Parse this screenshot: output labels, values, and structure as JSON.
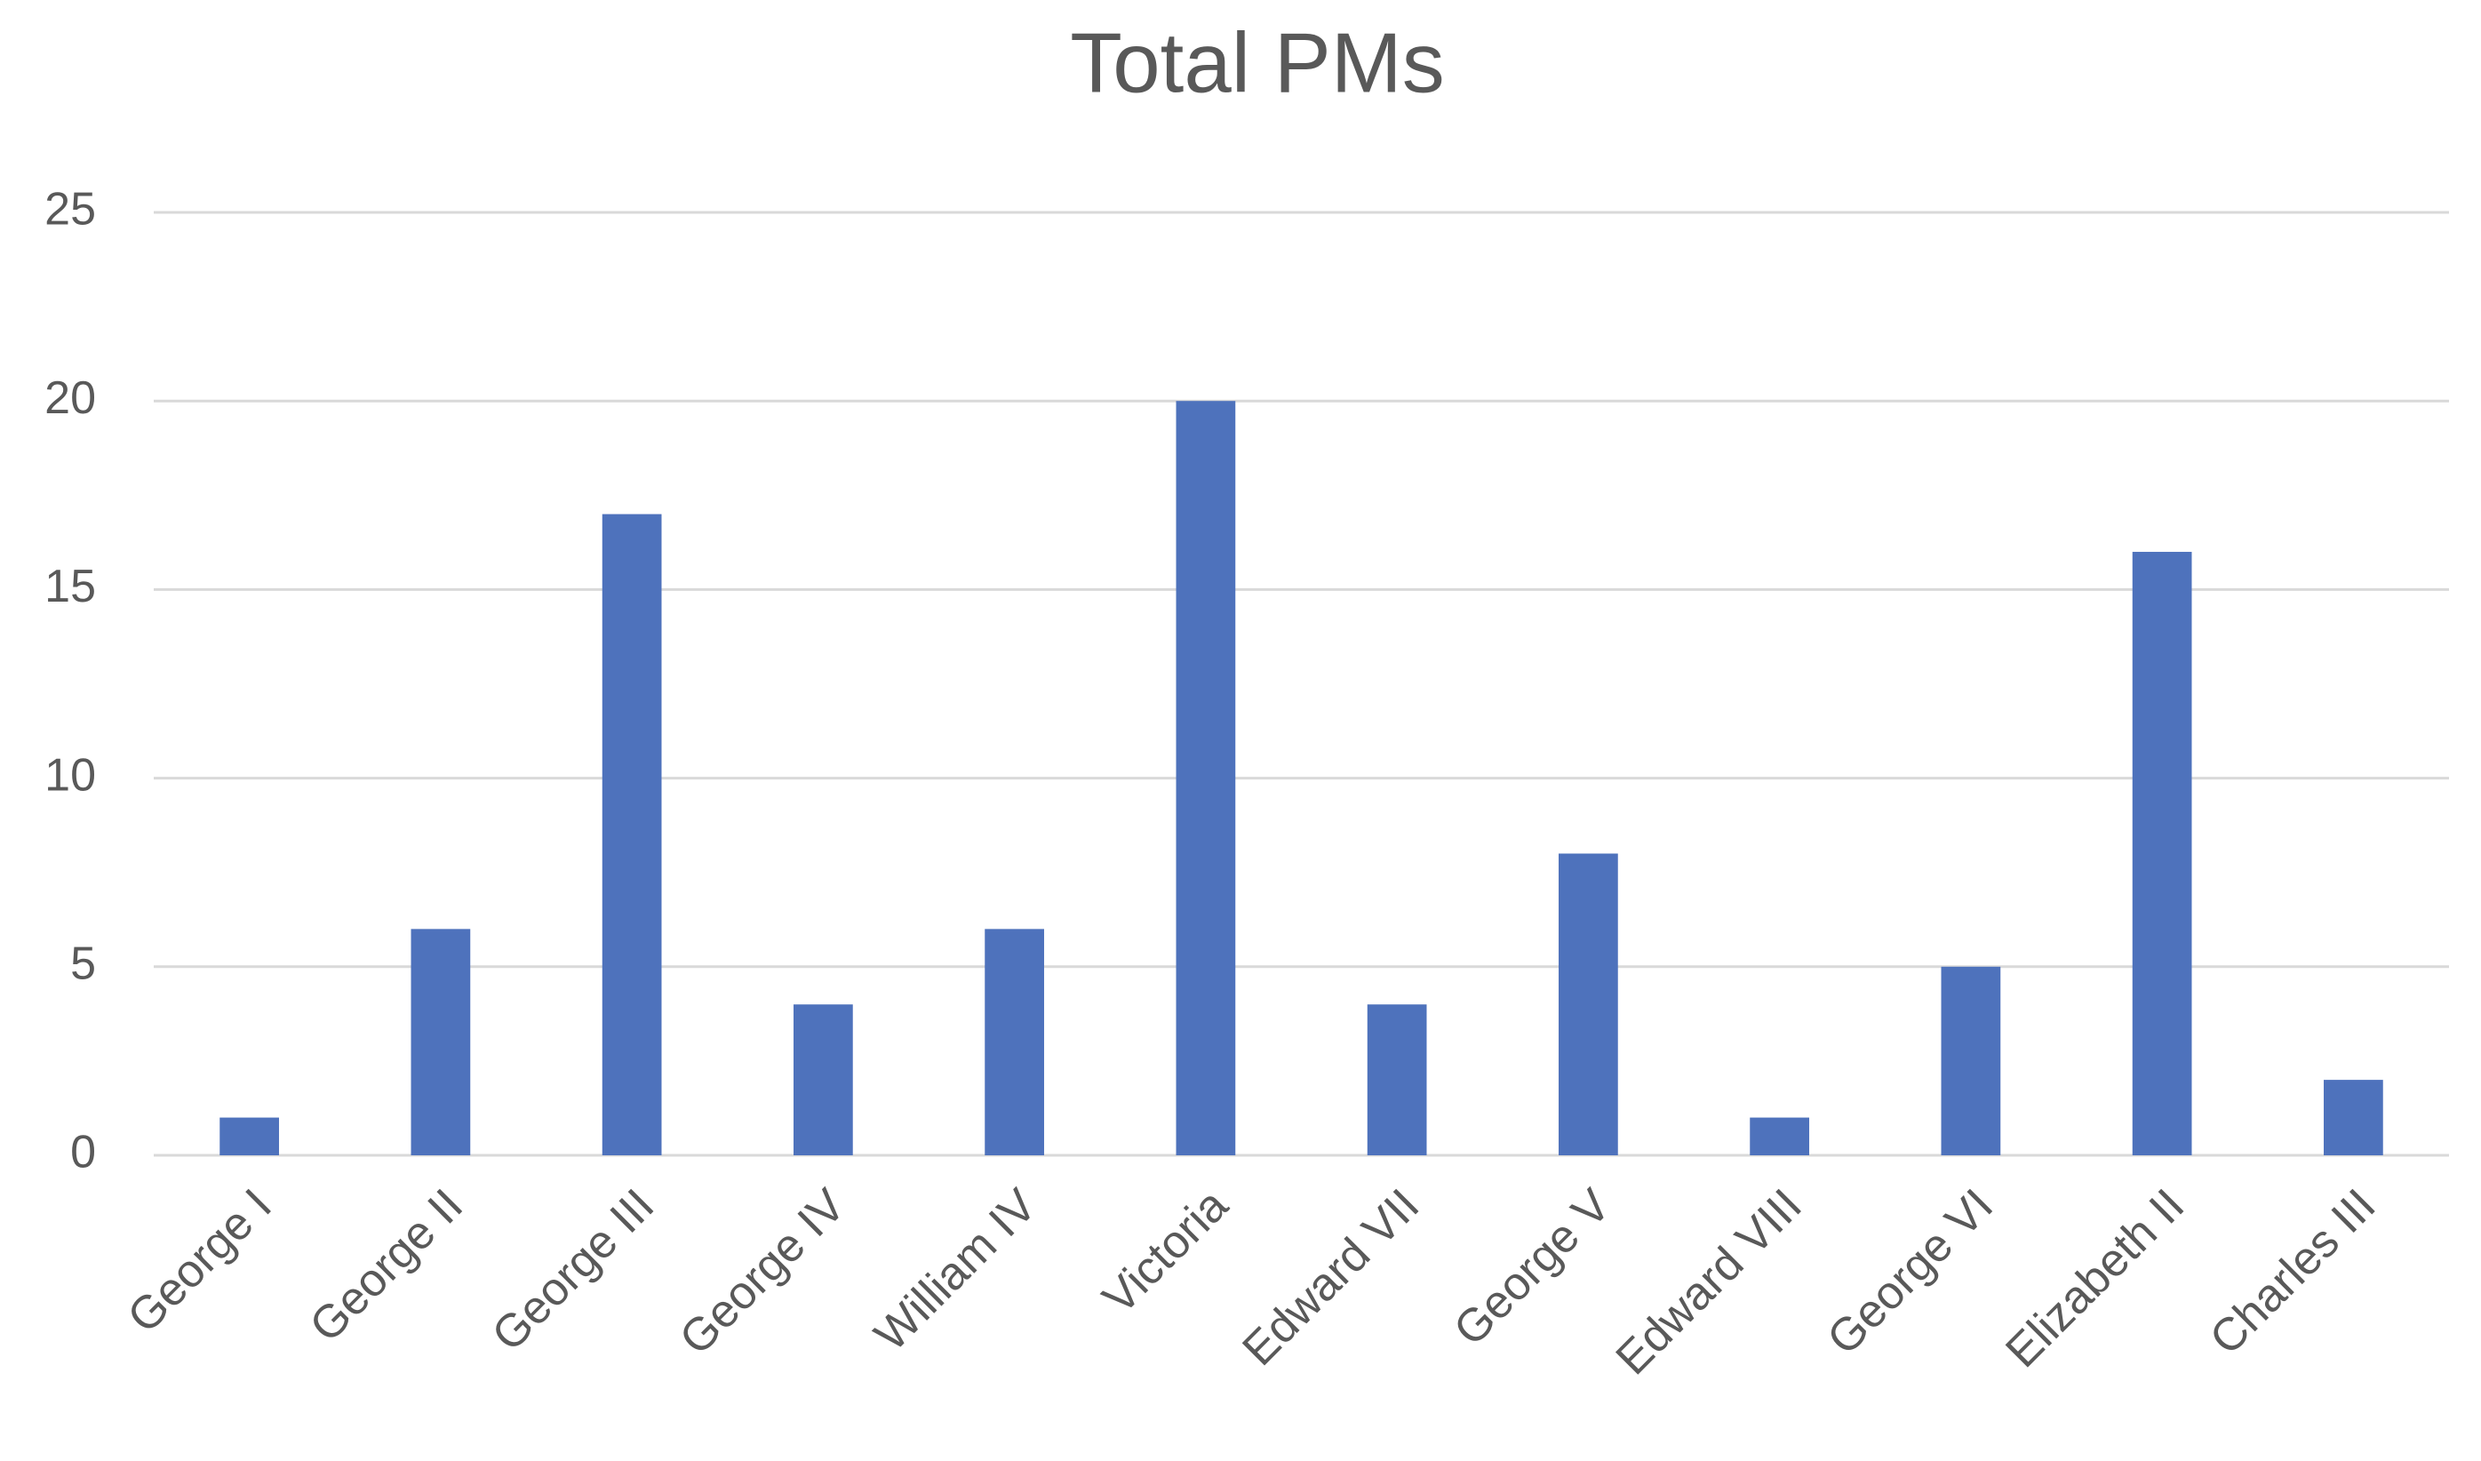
{
  "chart_data": {
    "type": "bar",
    "title": "Total PMs",
    "categories": [
      "George I",
      "George II",
      "George III",
      "George IV",
      "William IV",
      "Victoria",
      "Edward VII",
      "George V",
      "Edward VIII",
      "George VI",
      "Elizabeth II",
      "Charles III"
    ],
    "values": [
      1,
      6,
      17,
      4,
      6,
      20,
      4,
      8,
      1,
      5,
      16,
      2
    ],
    "color": "#4e72bc",
    "ylim": [
      0,
      25
    ],
    "yticks": [
      0,
      5,
      10,
      15,
      20,
      25
    ],
    "grid": true
  }
}
